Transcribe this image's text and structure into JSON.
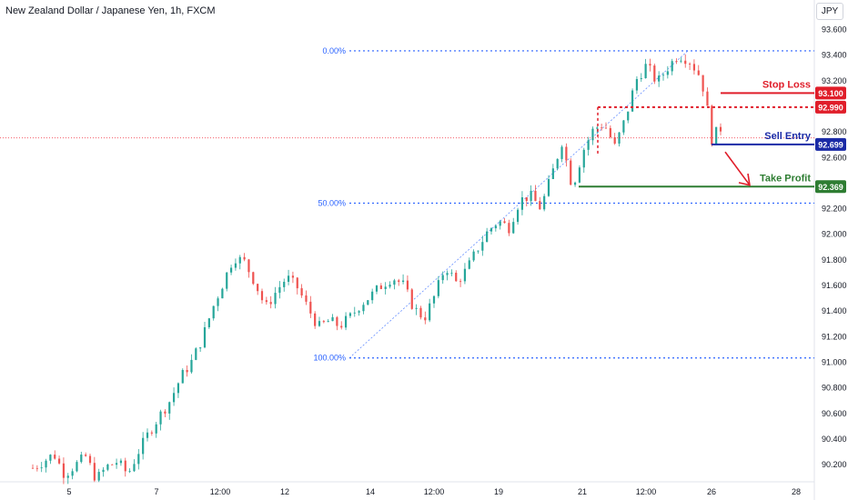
{
  "header": {
    "title": "New Zealand Dollar / Japanese Yen, 1h, FXCM",
    "currency": "JPY"
  },
  "colors": {
    "up": "#26a69a",
    "down": "#ef5350",
    "stop_loss": "#e01e2a",
    "entry": "#1a2aa6",
    "take_profit": "#2e7d32",
    "fib": "#2962ff",
    "current_price_line": "#f23645",
    "axis_text": "#131722"
  },
  "chart_data": {
    "type": "candlestick",
    "y_axis": {
      "ylim": [
        90.06,
        93.75
      ],
      "ticks": [
        "93.600",
        "93.400",
        "93.200",
        "92.800",
        "92.600",
        "92.200",
        "92.000",
        "91.800",
        "91.600",
        "91.400",
        "91.200",
        "91.000",
        "90.800",
        "90.600",
        "90.400",
        "90.200"
      ],
      "side": "right"
    },
    "x_axis": {
      "tick_labels": [
        "5",
        "7",
        "12:00",
        "12",
        "14",
        "12:00",
        "19",
        "21",
        "12:00",
        "26",
        "28"
      ]
    },
    "fib_levels": [
      {
        "label": "0.00%",
        "price": 93.43
      },
      {
        "label": "50.00%",
        "price": 92.24
      },
      {
        "label": "100.00%",
        "price": 91.03
      }
    ],
    "trade_levels": [
      {
        "name": "Stop Loss",
        "price_label": "93.100",
        "price": 93.1,
        "style": "solid",
        "color_key": "stop_loss"
      },
      {
        "name": "",
        "price_label": "92.990",
        "price": 92.99,
        "style": "dotted",
        "color_key": "stop_loss"
      },
      {
        "name": "Sell Entry",
        "price_label": "92.699",
        "price": 92.699,
        "style": "solid",
        "color_key": "entry"
      },
      {
        "name": "Take Profit",
        "price_label": "92.369",
        "price": 92.369,
        "style": "solid",
        "color_key": "take_profit"
      }
    ],
    "current_price": 92.75,
    "price_path": [
      [
        0,
        90.17
      ],
      [
        6,
        90.22
      ],
      [
        12,
        90.28
      ],
      [
        18,
        90.12
      ],
      [
        24,
        90.19
      ],
      [
        30,
        90.26
      ],
      [
        36,
        90.08
      ],
      [
        42,
        90.18
      ],
      [
        48,
        90.22
      ],
      [
        54,
        90.12
      ],
      [
        60,
        90.3
      ],
      [
        66,
        90.45
      ],
      [
        72,
        90.58
      ],
      [
        78,
        90.7
      ],
      [
        84,
        90.88
      ],
      [
        90,
        91.0
      ],
      [
        96,
        91.18
      ],
      [
        102,
        91.42
      ],
      [
        108,
        91.62
      ],
      [
        114,
        91.82
      ],
      [
        120,
        91.78
      ],
      [
        126,
        91.62
      ],
      [
        132,
        91.42
      ],
      [
        138,
        91.55
      ],
      [
        144,
        91.66
      ],
      [
        150,
        91.58
      ],
      [
        156,
        91.42
      ],
      [
        162,
        91.27
      ],
      [
        168,
        91.32
      ],
      [
        174,
        91.28
      ],
      [
        180,
        91.35
      ],
      [
        186,
        91.45
      ],
      [
        192,
        91.52
      ],
      [
        198,
        91.6
      ],
      [
        204,
        91.66
      ],
      [
        210,
        91.6
      ],
      [
        216,
        91.42
      ],
      [
        222,
        91.34
      ],
      [
        228,
        91.52
      ],
      [
        234,
        91.75
      ],
      [
        240,
        91.62
      ],
      [
        246,
        91.72
      ],
      [
        252,
        91.88
      ],
      [
        258,
        92.02
      ],
      [
        264,
        92.1
      ],
      [
        270,
        92.05
      ],
      [
        276,
        92.26
      ],
      [
        282,
        92.3
      ],
      [
        288,
        92.2
      ],
      [
        294,
        92.45
      ],
      [
        300,
        92.72
      ],
      [
        306,
        92.36
      ],
      [
        312,
        92.65
      ],
      [
        318,
        92.82
      ],
      [
        324,
        92.86
      ],
      [
        330,
        92.68
      ],
      [
        336,
        92.9
      ],
      [
        342,
        93.2
      ],
      [
        348,
        93.32
      ],
      [
        354,
        93.18
      ],
      [
        360,
        93.3
      ],
      [
        366,
        93.4
      ],
      [
        372,
        93.36
      ],
      [
        378,
        93.24
      ],
      [
        382,
        93.05
      ],
      [
        384,
        92.72
      ],
      [
        388,
        92.8
      ]
    ]
  }
}
